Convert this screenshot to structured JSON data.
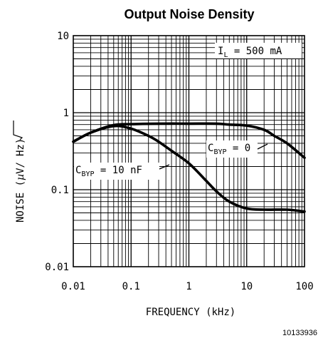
{
  "chart_data": {
    "type": "line",
    "title": "Output Noise Density",
    "xlabel": "FREQUENCY (kHz)",
    "ylabel_parts": {
      "prefix": "NOISE (",
      "mu": "µ",
      "unit": "V/",
      "radicand": "Hz",
      "suffix": ")"
    },
    "x_scale": "log",
    "y_scale": "log",
    "xlim": [
      0.01,
      100
    ],
    "ylim": [
      0.01,
      10
    ],
    "grid": true,
    "x_tick_labels": [
      "0.01",
      "0.1",
      "1",
      "10",
      "100"
    ],
    "y_tick_labels": [
      "0.01",
      "0.1",
      "1",
      "10"
    ],
    "series": [
      {
        "label_main": "C",
        "label_sub": "BYP",
        "label_rest": " = 0",
        "x": [
          0.01,
          0.02,
          0.05,
          0.1,
          0.3,
          1,
          3,
          5,
          10,
          20,
          30,
          50,
          100
        ],
        "y": [
          0.42,
          0.55,
          0.69,
          0.71,
          0.72,
          0.72,
          0.72,
          0.7,
          0.68,
          0.6,
          0.5,
          0.4,
          0.26
        ]
      },
      {
        "label_main": "C",
        "label_sub": "BYP",
        "label_rest": " = 10 nF",
        "x": [
          0.01,
          0.02,
          0.05,
          0.1,
          0.2,
          0.3,
          0.5,
          1,
          2,
          3,
          5,
          10,
          20,
          50,
          100
        ],
        "y": [
          0.42,
          0.55,
          0.67,
          0.62,
          0.5,
          0.42,
          0.32,
          0.22,
          0.13,
          0.095,
          0.07,
          0.057,
          0.055,
          0.055,
          0.052
        ]
      }
    ],
    "annotations": [
      {
        "main": "I",
        "sub": "L",
        "rest": " = 500 mA"
      }
    ],
    "figure_id": "10133936"
  }
}
